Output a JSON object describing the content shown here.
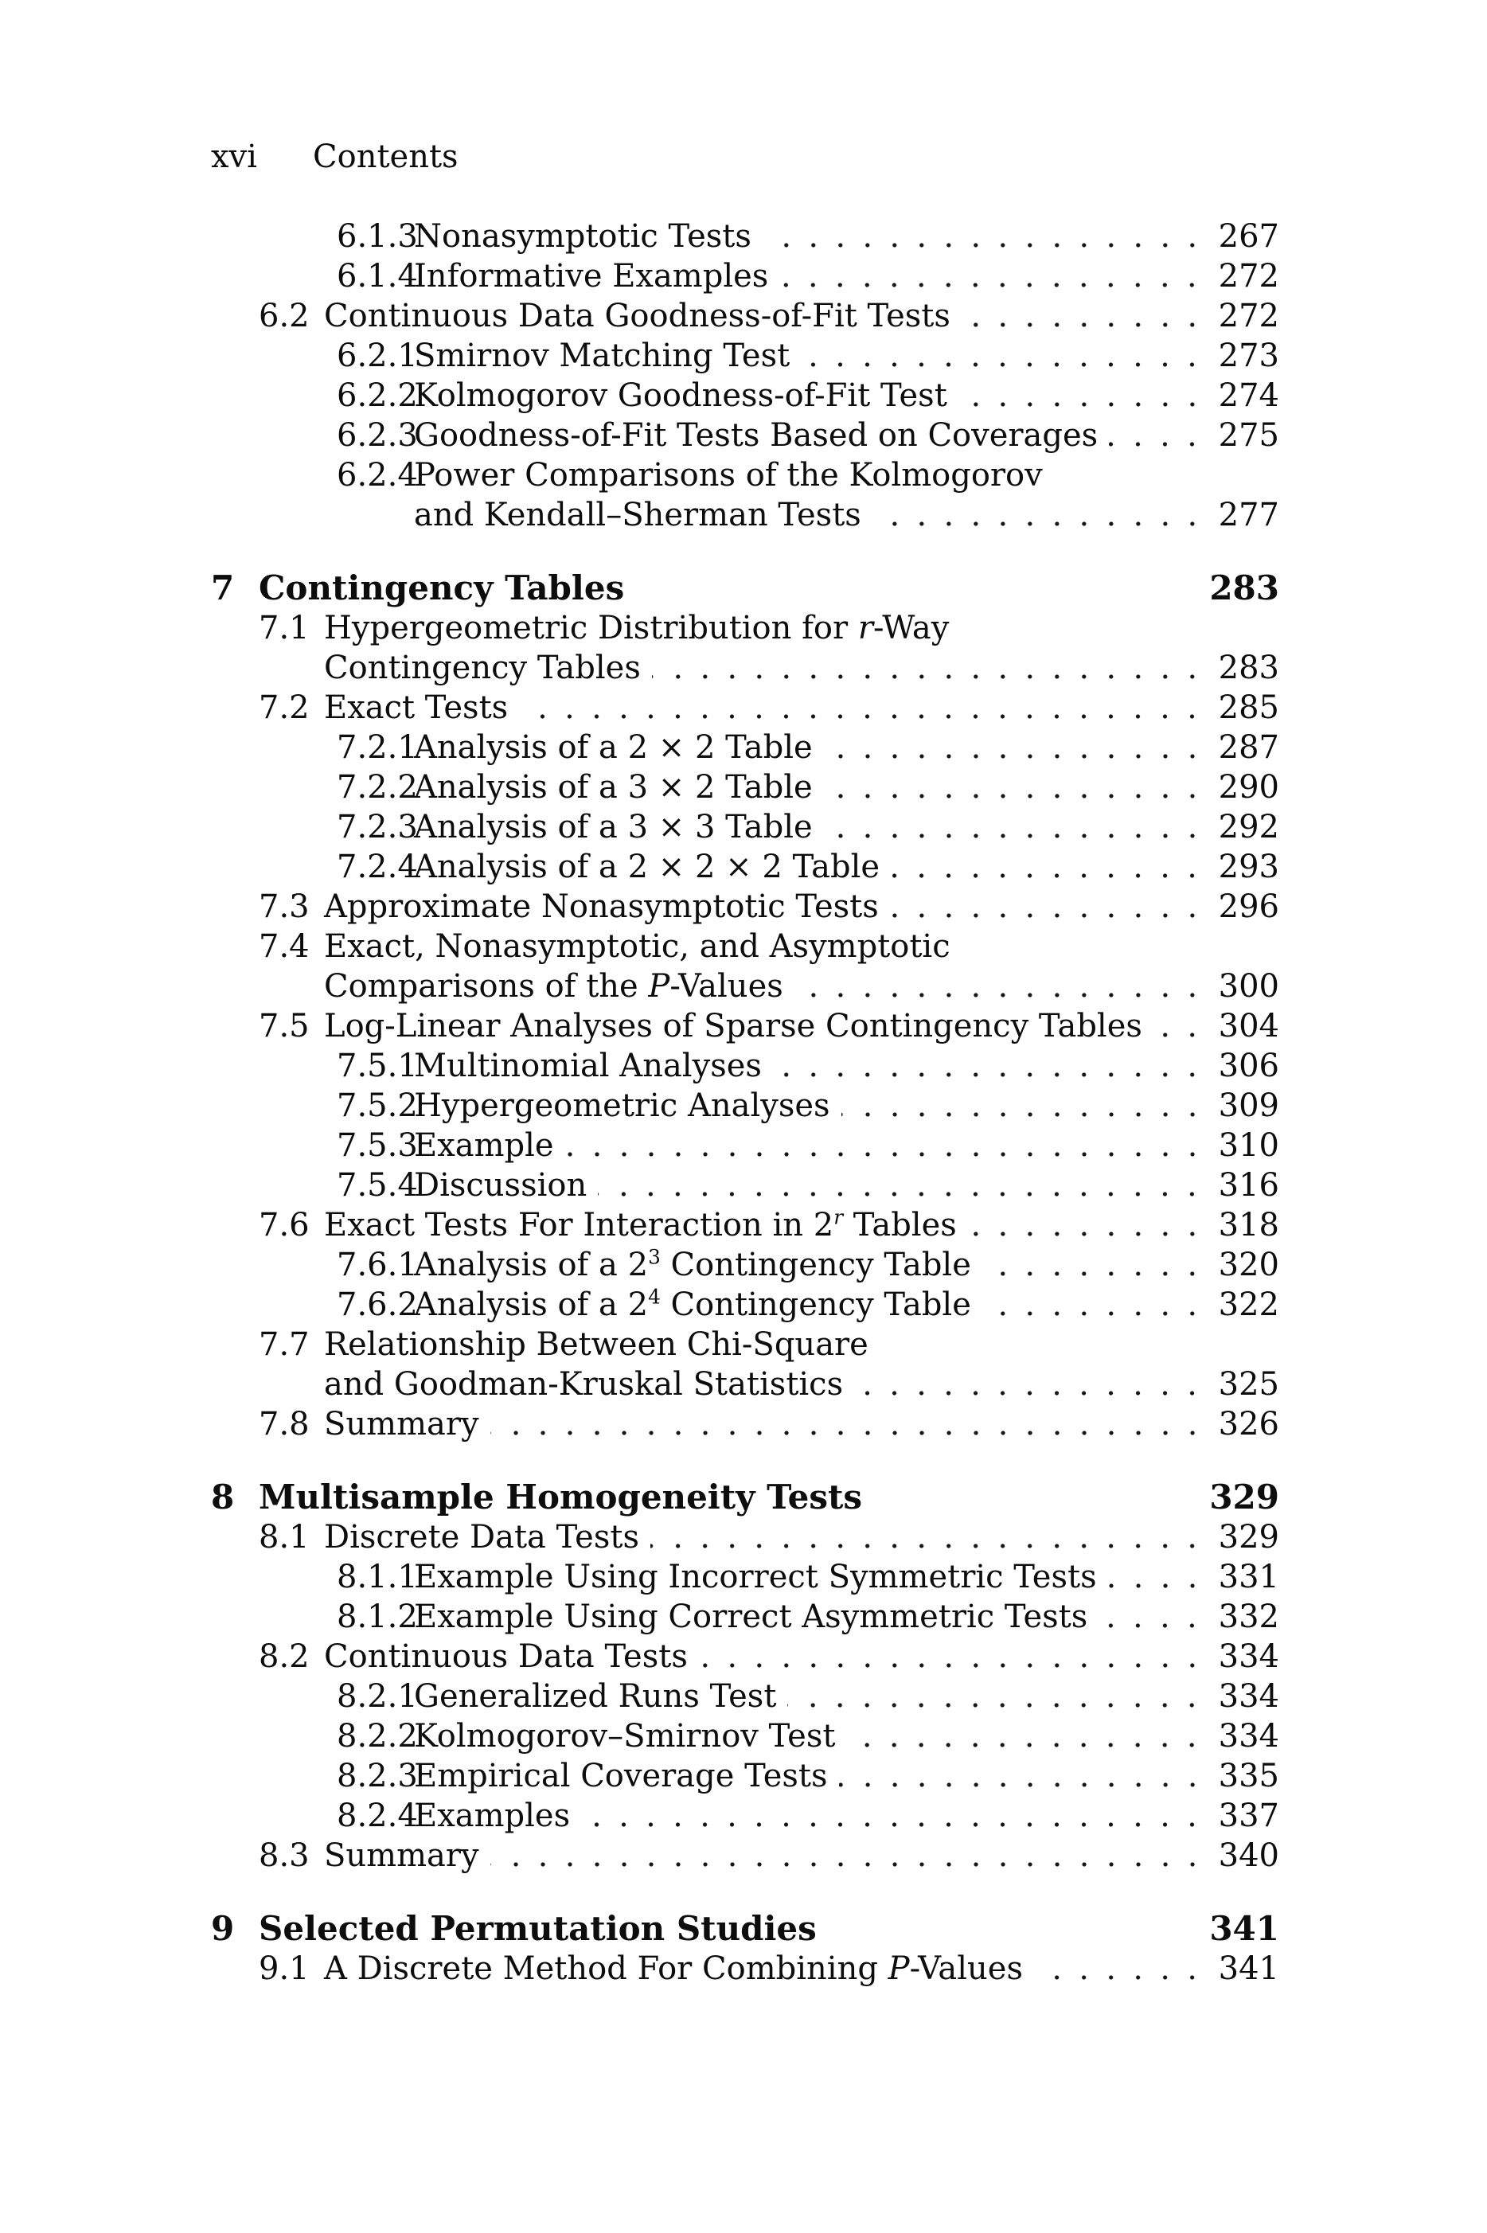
{
  "colors": {
    "paper": "#ffffff",
    "text": "#0d0d0d"
  },
  "header": {
    "folio": "xvi",
    "title": "Contents"
  },
  "toc": {
    "entries": [
      {
        "level": "subsection",
        "number": "6.1.3",
        "lines": [
          "Nonasymptotic Tests"
        ],
        "page": "267"
      },
      {
        "level": "subsection",
        "number": "6.1.4",
        "lines": [
          "Informative Examples"
        ],
        "page": "272"
      },
      {
        "level": "section",
        "number": "6.2",
        "lines": [
          "Continuous Data Goodness-of-Fit Tests"
        ],
        "page": "272"
      },
      {
        "level": "subsection",
        "number": "6.2.1",
        "lines": [
          "Smirnov Matching Test"
        ],
        "page": "273"
      },
      {
        "level": "subsection",
        "number": "6.2.2",
        "lines": [
          "Kolmogorov Goodness-of-Fit Test"
        ],
        "page": "274"
      },
      {
        "level": "subsection",
        "number": "6.2.3",
        "lines": [
          "Goodness-of-Fit Tests Based on Coverages"
        ],
        "page": "275"
      },
      {
        "level": "subsection",
        "number": "6.2.4",
        "lines": [
          "Power Comparisons of the Kolmogorov",
          "and Kendall–Sherman Tests"
        ],
        "page": "277"
      },
      {
        "level": "chapter",
        "number": "7",
        "lines": [
          "Contingency Tables"
        ],
        "page": "283",
        "space_before": true
      },
      {
        "level": "section",
        "number": "7.1",
        "lines": [
          "Hypergeometric Distribution for *r*-Way",
          "Contingency Tables"
        ],
        "page": "283"
      },
      {
        "level": "section",
        "number": "7.2",
        "lines": [
          "Exact Tests"
        ],
        "page": "285"
      },
      {
        "level": "subsection",
        "number": "7.2.1",
        "lines": [
          "Analysis of a 2 × 2 Table"
        ],
        "page": "287"
      },
      {
        "level": "subsection",
        "number": "7.2.2",
        "lines": [
          "Analysis of a 3 × 2 Table"
        ],
        "page": "290"
      },
      {
        "level": "subsection",
        "number": "7.2.3",
        "lines": [
          "Analysis of a 3 × 3 Table"
        ],
        "page": "292"
      },
      {
        "level": "subsection",
        "number": "7.2.4",
        "lines": [
          "Analysis of a 2 × 2 × 2 Table"
        ],
        "page": "293"
      },
      {
        "level": "section",
        "number": "7.3",
        "lines": [
          "Approximate Nonasymptotic Tests"
        ],
        "page": "296"
      },
      {
        "level": "section",
        "number": "7.4",
        "lines": [
          "Exact, Nonasymptotic, and Asymptotic",
          "Comparisons of the *P*-Values"
        ],
        "page": "300"
      },
      {
        "level": "section",
        "number": "7.5",
        "lines": [
          "Log-Linear Analyses of Sparse Contingency Tables"
        ],
        "page": "304"
      },
      {
        "level": "subsection",
        "number": "7.5.1",
        "lines": [
          "Multinomial Analyses"
        ],
        "page": "306"
      },
      {
        "level": "subsection",
        "number": "7.5.2",
        "lines": [
          "Hypergeometric Analyses"
        ],
        "page": "309"
      },
      {
        "level": "subsection",
        "number": "7.5.3",
        "lines": [
          "Example"
        ],
        "page": "310"
      },
      {
        "level": "subsection",
        "number": "7.5.4",
        "lines": [
          "Discussion"
        ],
        "page": "316"
      },
      {
        "level": "section",
        "number": "7.6",
        "lines": [
          "Exact Tests For Interaction in 2^{*r*} Tables"
        ],
        "page": "318"
      },
      {
        "level": "subsection",
        "number": "7.6.1",
        "lines": [
          "Analysis of a 2^{3} Contingency Table"
        ],
        "page": "320"
      },
      {
        "level": "subsection",
        "number": "7.6.2",
        "lines": [
          "Analysis of a 2^{4} Contingency Table"
        ],
        "page": "322"
      },
      {
        "level": "section",
        "number": "7.7",
        "lines": [
          "Relationship Between Chi-Square",
          "and Goodman-Kruskal Statistics"
        ],
        "page": "325"
      },
      {
        "level": "section",
        "number": "7.8",
        "lines": [
          "Summary"
        ],
        "page": "326"
      },
      {
        "level": "chapter",
        "number": "8",
        "lines": [
          "Multisample Homogeneity Tests"
        ],
        "page": "329",
        "space_before": true
      },
      {
        "level": "section",
        "number": "8.1",
        "lines": [
          "Discrete Data Tests"
        ],
        "page": "329"
      },
      {
        "level": "subsection",
        "number": "8.1.1",
        "lines": [
          "Example Using Incorrect Symmetric Tests"
        ],
        "page": "331"
      },
      {
        "level": "subsection",
        "number": "8.1.2",
        "lines": [
          "Example Using Correct Asymmetric Tests"
        ],
        "page": "332"
      },
      {
        "level": "section",
        "number": "8.2",
        "lines": [
          "Continuous Data Tests"
        ],
        "page": "334"
      },
      {
        "level": "subsection",
        "number": "8.2.1",
        "lines": [
          "Generalized Runs Test"
        ],
        "page": "334"
      },
      {
        "level": "subsection",
        "number": "8.2.2",
        "lines": [
          "Kolmogorov–Smirnov Test"
        ],
        "page": "334"
      },
      {
        "level": "subsection",
        "number": "8.2.3",
        "lines": [
          "Empirical Coverage Tests"
        ],
        "page": "335"
      },
      {
        "level": "subsection",
        "number": "8.2.4",
        "lines": [
          "Examples"
        ],
        "page": "337"
      },
      {
        "level": "section",
        "number": "8.3",
        "lines": [
          "Summary"
        ],
        "page": "340"
      },
      {
        "level": "chapter",
        "number": "9",
        "lines": [
          "Selected Permutation Studies"
        ],
        "page": "341",
        "space_before": true
      },
      {
        "level": "section",
        "number": "9.1",
        "lines": [
          "A Discrete Method For Combining *P*-Values"
        ],
        "page": "341"
      }
    ]
  }
}
